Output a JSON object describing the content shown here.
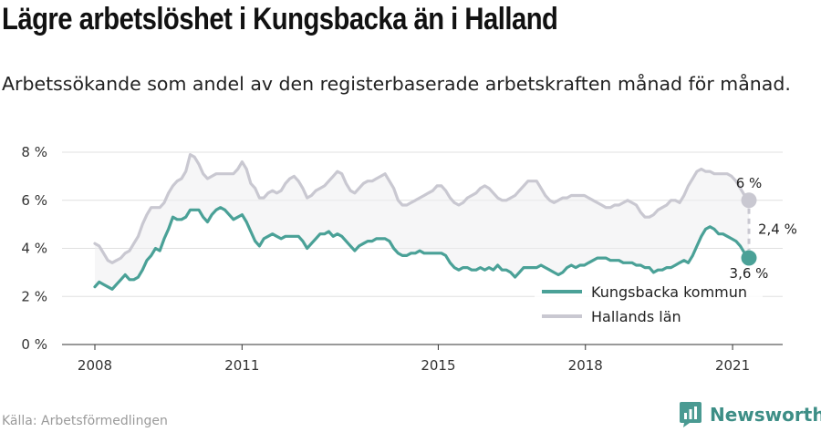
{
  "title": "Lägre arbetslöshet i Kungsbacka än i Halland",
  "subtitle": "Arbetssökande som andel av den registerbaserade arbetskraften månad för månad.",
  "source": "Källa: Arbetsförmedlingen",
  "brand": "Newsworthy",
  "brand_icon": "newsworthy-logo-icon",
  "chart_data": {
    "type": "line",
    "x_start": "2008-01",
    "x_end": "2021-05",
    "x_ticks": [
      "2008",
      "2011",
      "2015",
      "2018",
      "2021"
    ],
    "y_ticks": [
      "0 %",
      "2 %",
      "4 %",
      "6 %",
      "8 %"
    ],
    "ylim": [
      0,
      8
    ],
    "grid": true,
    "legend_position": "bottom-right",
    "series": [
      {
        "name": "Kungsbacka kommun",
        "color": "#4aa197",
        "values": [
          2.4,
          2.6,
          2.5,
          2.4,
          2.3,
          2.5,
          2.7,
          2.9,
          2.7,
          2.7,
          2.8,
          3.1,
          3.5,
          3.7,
          4.0,
          3.9,
          4.4,
          4.8,
          5.3,
          5.2,
          5.2,
          5.3,
          5.6,
          5.6,
          5.6,
          5.3,
          5.1,
          5.4,
          5.6,
          5.7,
          5.6,
          5.4,
          5.2,
          5.3,
          5.4,
          5.1,
          4.7,
          4.3,
          4.1,
          4.4,
          4.5,
          4.6,
          4.5,
          4.4,
          4.5,
          4.5,
          4.5,
          4.5,
          4.3,
          4.0,
          4.2,
          4.4,
          4.6,
          4.6,
          4.7,
          4.5,
          4.6,
          4.5,
          4.3,
          4.1,
          3.9,
          4.1,
          4.2,
          4.3,
          4.3,
          4.4,
          4.4,
          4.4,
          4.3,
          4.0,
          3.8,
          3.7,
          3.7,
          3.8,
          3.8,
          3.9,
          3.8,
          3.8,
          3.8,
          3.8,
          3.8,
          3.7,
          3.4,
          3.2,
          3.1,
          3.2,
          3.2,
          3.1,
          3.1,
          3.2,
          3.1,
          3.2,
          3.1,
          3.3,
          3.1,
          3.1,
          3.0,
          2.8,
          3.0,
          3.2,
          3.2,
          3.2,
          3.2,
          3.3,
          3.2,
          3.1,
          3.0,
          2.9,
          3.0,
          3.2,
          3.3,
          3.2,
          3.3,
          3.3,
          3.4,
          3.5,
          3.6,
          3.6,
          3.6,
          3.5,
          3.5,
          3.5,
          3.4,
          3.4,
          3.4,
          3.3,
          3.3,
          3.2,
          3.2,
          3.0,
          3.1,
          3.1,
          3.2,
          3.2,
          3.3,
          3.4,
          3.5,
          3.4,
          3.7,
          4.1,
          4.5,
          4.8,
          4.9,
          4.8,
          4.6,
          4.6,
          4.5,
          4.4,
          4.3,
          4.1,
          3.8,
          3.6
        ],
        "last_label": "3,6 %"
      },
      {
        "name": "Hallands län",
        "color": "#c9c8d1",
        "values": [
          4.2,
          4.1,
          3.8,
          3.5,
          3.4,
          3.5,
          3.6,
          3.8,
          3.9,
          4.2,
          4.5,
          5.0,
          5.4,
          5.7,
          5.7,
          5.7,
          5.9,
          6.3,
          6.6,
          6.8,
          6.9,
          7.2,
          7.9,
          7.8,
          7.5,
          7.1,
          6.9,
          7.0,
          7.1,
          7.1,
          7.1,
          7.1,
          7.1,
          7.3,
          7.6,
          7.3,
          6.7,
          6.5,
          6.1,
          6.1,
          6.3,
          6.4,
          6.3,
          6.4,
          6.7,
          6.9,
          7.0,
          6.8,
          6.5,
          6.1,
          6.2,
          6.4,
          6.5,
          6.6,
          6.8,
          7.0,
          7.2,
          7.1,
          6.7,
          6.4,
          6.3,
          6.5,
          6.7,
          6.8,
          6.8,
          6.9,
          7.0,
          7.1,
          6.8,
          6.5,
          6.0,
          5.8,
          5.8,
          5.9,
          6.0,
          6.1,
          6.2,
          6.3,
          6.4,
          6.6,
          6.6,
          6.4,
          6.1,
          5.9,
          5.8,
          5.9,
          6.1,
          6.2,
          6.3,
          6.5,
          6.6,
          6.5,
          6.3,
          6.1,
          6.0,
          6.0,
          6.1,
          6.2,
          6.4,
          6.6,
          6.8,
          6.8,
          6.8,
          6.5,
          6.2,
          6.0,
          5.9,
          6.0,
          6.1,
          6.1,
          6.2,
          6.2,
          6.2,
          6.2,
          6.1,
          6.0,
          5.9,
          5.8,
          5.7,
          5.7,
          5.8,
          5.8,
          5.9,
          6.0,
          5.9,
          5.8,
          5.5,
          5.3,
          5.3,
          5.4,
          5.6,
          5.7,
          5.8,
          6.0,
          6.0,
          5.9,
          6.2,
          6.6,
          6.9,
          7.2,
          7.3,
          7.2,
          7.2,
          7.1,
          7.1,
          7.1,
          7.1,
          7.0,
          6.8,
          6.5,
          6.2,
          6.0
        ],
        "last_label": "6 %"
      }
    ],
    "difference_label": "2,4 %"
  }
}
